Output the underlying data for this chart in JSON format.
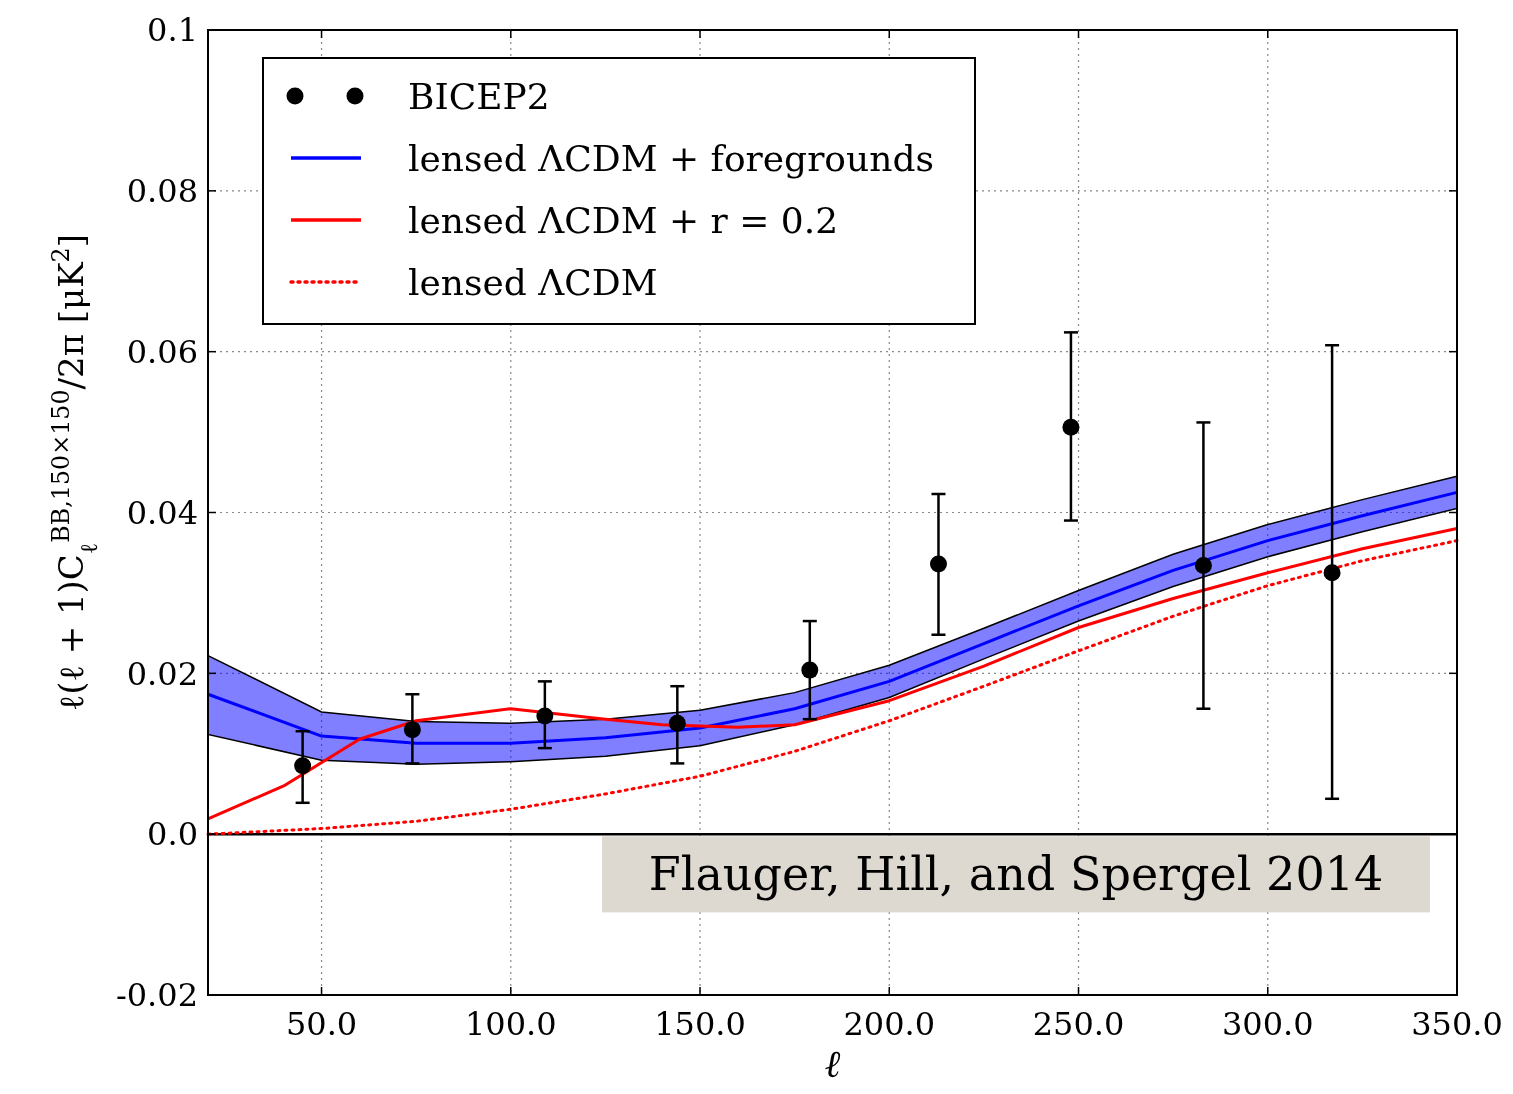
{
  "chart_data": {
    "type": "line",
    "xlabel": "ℓ",
    "ylabel": "ℓ(ℓ + 1)C$_{ℓ}$$^{BB,150×150}$/2π [μK$^{2}$]",
    "xlim": [
      20,
      350
    ],
    "ylim": [
      -0.02,
      0.1
    ],
    "xticks": [
      {
        "value": 50,
        "label": "50.0"
      },
      {
        "value": 100,
        "label": "100.0"
      },
      {
        "value": 150,
        "label": "150.0"
      },
      {
        "value": 200,
        "label": "200.0"
      },
      {
        "value": 250,
        "label": "250.0"
      },
      {
        "value": 300,
        "label": "300.0"
      },
      {
        "value": 350,
        "label": "350.0"
      }
    ],
    "yticks": [
      -0.02,
      {
        "value": 0,
        "label": "0.0"
      },
      0.02,
      0.04,
      0.06,
      0.08,
      0.1
    ],
    "grid": true,
    "legend": "top left",
    "ref_lines": [
      {
        "axis": "y",
        "value": 0,
        "color": "#000000",
        "line_style": "solid"
      }
    ],
    "annotations": [
      "Flauger, Hill, and Spergel 2014"
    ],
    "series": [
      {
        "name": "BICEP2",
        "type": "scatter",
        "marker": "circle",
        "color": "#000000",
        "x": [
          45,
          74,
          109,
          144,
          179,
          213,
          248,
          283,
          317
        ],
        "values": [
          0.0085,
          0.013,
          0.0147,
          0.0138,
          0.0204,
          0.0336,
          0.0506,
          0.0334,
          0.0325
        ],
        "errors": [
          [
            0.0039,
            0.0128
          ],
          [
            0.0088,
            0.0174
          ],
          [
            0.0107,
            0.019
          ],
          [
            0.0088,
            0.0184
          ],
          [
            0.0143,
            0.0265
          ],
          [
            0.0248,
            0.0423
          ],
          [
            0.039,
            0.0624
          ],
          [
            0.0156,
            0.0512
          ],
          [
            0.0044,
            0.0608
          ]
        ]
      },
      {
        "name": "lensed ΛCDM + foregrounds",
        "color": "#0000ff",
        "line_style": "solid",
        "x": [
          20,
          50,
          75,
          100,
          125,
          150,
          175,
          200,
          225,
          250,
          275,
          300,
          325,
          350
        ],
        "values": [
          0.0174,
          0.0122,
          0.0113,
          0.0113,
          0.012,
          0.0132,
          0.0156,
          0.019,
          0.0237,
          0.0284,
          0.0328,
          0.0365,
          0.0396,
          0.0425
        ],
        "lower": [
          0.0124,
          0.0092,
          0.0087,
          0.009,
          0.0097,
          0.011,
          0.0136,
          0.017,
          0.0218,
          0.0265,
          0.0308,
          0.0345,
          0.0376,
          0.0405
        ],
        "upper": [
          0.0222,
          0.0152,
          0.014,
          0.0138,
          0.0143,
          0.0154,
          0.0176,
          0.021,
          0.0256,
          0.0303,
          0.0348,
          0.0385,
          0.0416,
          0.0445
        ]
      },
      {
        "name": "lensed ΛCDM + r = 0.2",
        "color": "#ff0000",
        "line_style": "solid",
        "x": [
          20,
          40,
          60,
          75,
          100,
          125,
          140,
          160,
          175,
          200,
          225,
          250,
          275,
          300,
          325,
          350
        ],
        "values": [
          0.0019,
          0.006,
          0.0118,
          0.0141,
          0.0156,
          0.0143,
          0.0136,
          0.0133,
          0.0136,
          0.0166,
          0.0209,
          0.0257,
          0.0293,
          0.0325,
          0.0355,
          0.038
        ]
      },
      {
        "name": "lensed ΛCDM",
        "color": "#ff0000",
        "line_style": "dotted",
        "x": [
          20,
          50,
          75,
          100,
          125,
          150,
          175,
          200,
          225,
          250,
          275,
          300,
          325,
          350
        ],
        "values": [
          0,
          0.0007,
          0.0016,
          0.0031,
          0.005,
          0.0072,
          0.0103,
          0.0141,
          0.0184,
          0.0228,
          0.0271,
          0.0309,
          0.034,
          0.0365
        ]
      }
    ]
  }
}
